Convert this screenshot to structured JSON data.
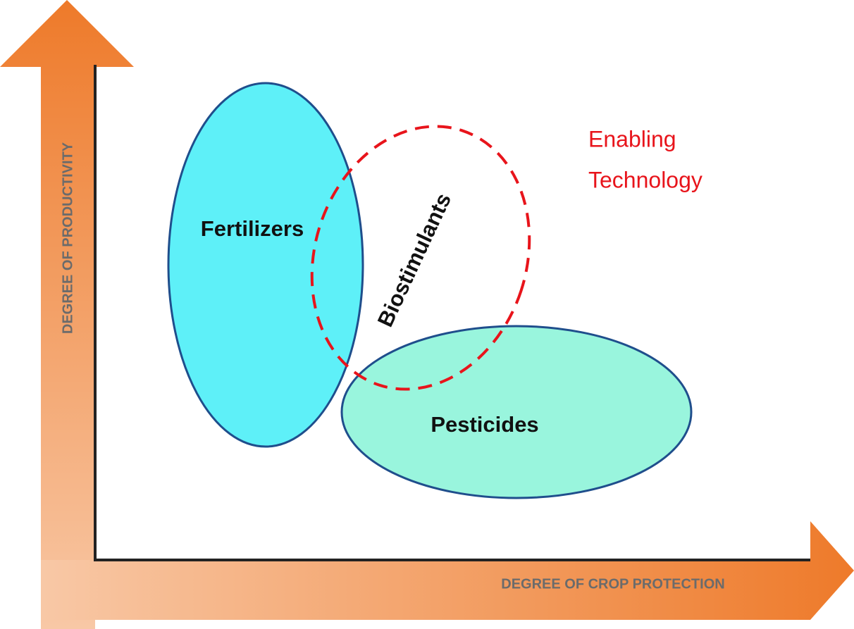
{
  "axes": {
    "y_label": "DEGREE OF PRODUCTIVITY",
    "x_label": "DEGREE OF CROP PROTECTION"
  },
  "nodes": [
    {
      "label": "Fertilizers"
    },
    {
      "label": "Pesticides"
    },
    {
      "label": "Biostimulants"
    }
  ],
  "annotation": {
    "lines": [
      "Enabling",
      "Technology"
    ]
  }
}
